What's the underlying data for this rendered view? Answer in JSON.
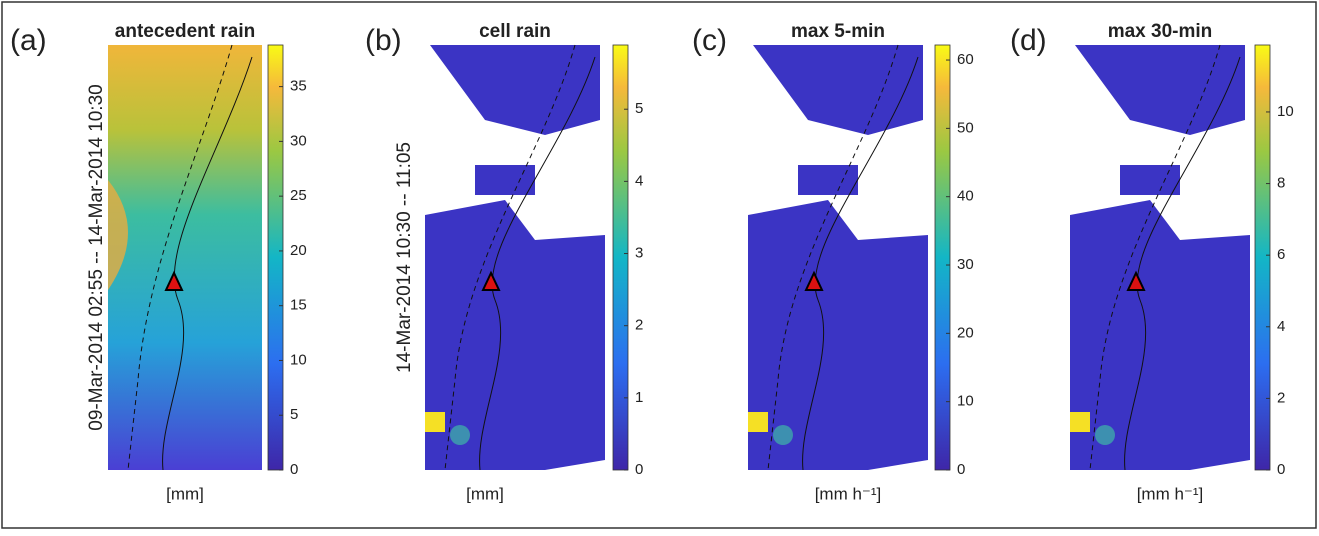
{
  "panels": [
    {
      "label": "(a)",
      "title": "antecedent rain",
      "ylabel": "09-Mar-2014 02:55 -- 14-Mar-2014 10:30",
      "unit": "[mm]",
      "clim": [
        0,
        38.8
      ],
      "cticks": [
        0,
        5,
        10,
        15,
        20,
        25,
        30,
        35
      ]
    },
    {
      "label": "(b)",
      "title": "cell rain",
      "ylabel": "14-Mar-2014 10:30 -- 11:05",
      "unit": "[mm]",
      "clim": [
        0,
        5.89
      ],
      "cticks": [
        0,
        1,
        2,
        3,
        4,
        5
      ]
    },
    {
      "label": "(c)",
      "title": "max 5-min",
      "unit": "[mm h⁻¹]",
      "clim": [
        0,
        62.2
      ],
      "cticks": [
        0,
        10,
        20,
        30,
        40,
        50,
        60
      ]
    },
    {
      "label": "(d)",
      "title": "max 30-min",
      "unit": "[mm h⁻¹]",
      "clim": [
        0,
        11.87
      ],
      "cticks": [
        0,
        2,
        4,
        6,
        8,
        10
      ]
    }
  ]
}
